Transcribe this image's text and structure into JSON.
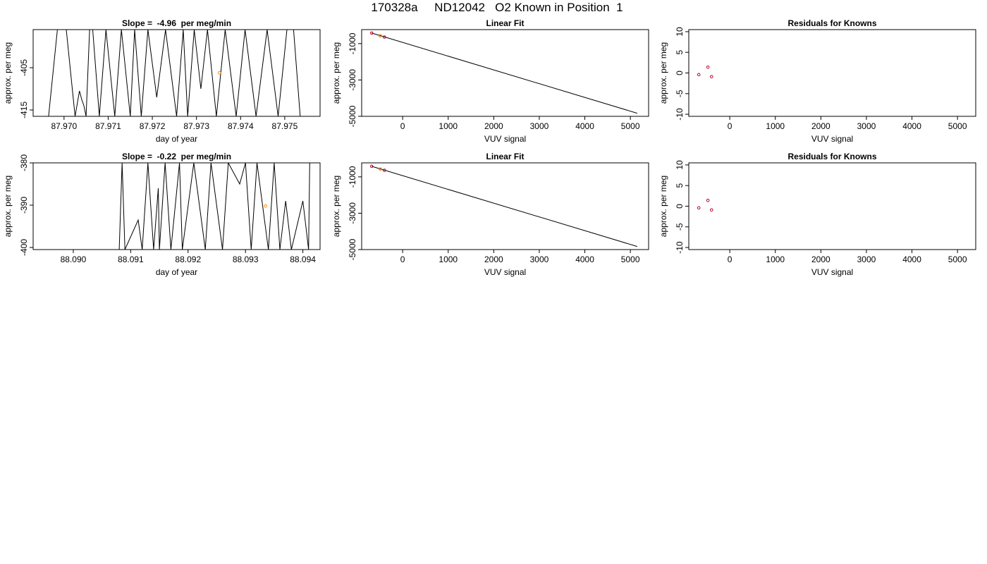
{
  "figure_title": "170328a     ND12042   O2 Known in Position  1",
  "colors": {
    "trace": "#000000",
    "known_marker": "#ff8c00",
    "residual_marker": "#c0002a",
    "fit_line": "#000000"
  },
  "chart_data": [
    {
      "id": "p1",
      "type": "line",
      "title": "Slope =  -4.96  per meg/min",
      "xlabel": "day of year",
      "ylabel": "approx. per meg",
      "xlim": [
        87.9693,
        87.9758
      ],
      "ylim": [
        -416.5,
        -396
      ],
      "xticks": [
        87.97,
        87.971,
        87.972,
        87.973,
        87.974,
        87.975
      ],
      "xtick_labels": [
        "87.970",
        "87.971",
        "87.972",
        "87.973",
        "87.974",
        "87.975"
      ],
      "yticks": [
        -405,
        -415
      ],
      "ytick_labels": [
        "-405",
        "-415"
      ],
      "series": [
        {
          "style": "trace",
          "x": [
            87.96965,
            87.96985,
            87.97005,
            87.97025,
            87.97035,
            87.9704,
            87.97045,
            87.9705,
            87.97058,
            87.97065,
            87.9708,
            87.97095,
            87.97115,
            87.9713,
            87.9715,
            87.9716,
            87.97175,
            87.9719,
            87.9721,
            87.9723,
            87.97255,
            87.9727,
            87.9728,
            87.97295,
            87.9731,
            87.97325,
            87.97345,
            87.97365,
            87.9739,
            87.9741,
            87.97435,
            87.9746,
            87.97485,
            87.97505,
            87.9752,
            87.97535
          ],
          "y": [
            -416.5,
            -396,
            -396,
            -416.5,
            -410.5,
            -412.5,
            -414,
            -416.5,
            -396,
            -396,
            -416.5,
            -396,
            -416.5,
            -396,
            -416.5,
            -396,
            -416.5,
            -396,
            -412,
            -396,
            -416.5,
            -396,
            -416.5,
            -396,
            -410,
            -396,
            -416.5,
            -396,
            -416.5,
            -396,
            -416.5,
            -396,
            -416.5,
            -396,
            -396,
            -416.5
          ]
        },
        {
          "style": "known_marker",
          "x": [
            87.97352
          ],
          "y": [
            -406.2
          ]
        }
      ]
    },
    {
      "id": "p2",
      "type": "scatter",
      "title": "Linear Fit",
      "xlabel": "VUV signal",
      "ylabel": "approx. per meg",
      "xlim": [
        -900,
        5400
      ],
      "ylim": [
        -5000,
        -230
      ],
      "xticks": [
        0,
        1000,
        2000,
        3000,
        4000,
        5000
      ],
      "xtick_labels": [
        "0",
        "1000",
        "2000",
        "3000",
        "4000",
        "5000"
      ],
      "yticks": [
        -1000,
        -3000,
        -5000
      ],
      "ytick_labels": [
        "-1000",
        "-3000",
        "-5000"
      ],
      "series": [
        {
          "style": "fit_line",
          "x": [
            -680,
            5150
          ],
          "y": [
            -420,
            -4830
          ]
        },
        {
          "style": "residual_marker",
          "x": [
            -680,
            -490,
            -400
          ],
          "y": [
            -420,
            -570,
            -640
          ]
        },
        {
          "style": "known_marker",
          "x": [
            -490
          ],
          "y": [
            -570
          ]
        }
      ]
    },
    {
      "id": "p3",
      "type": "scatter",
      "title": "Residuals for Knowns",
      "xlabel": "VUV signal",
      "ylabel": "approx. per meg",
      "xlim": [
        -900,
        5400
      ],
      "ylim": [
        -10.5,
        10.5
      ],
      "xticks": [
        0,
        1000,
        2000,
        3000,
        4000,
        5000
      ],
      "xtick_labels": [
        "0",
        "1000",
        "2000",
        "3000",
        "4000",
        "5000"
      ],
      "yticks": [
        -10,
        -5,
        0,
        5,
        10
      ],
      "ytick_labels": [
        "-10",
        "-5",
        "0",
        "5",
        "10"
      ],
      "series": [
        {
          "style": "residual_marker",
          "x": [
            -680,
            -480,
            -400
          ],
          "y": [
            -0.4,
            1.4,
            -0.9
          ]
        }
      ]
    },
    {
      "id": "p4",
      "type": "line",
      "title": "Slope =  -0.22  per meg/min",
      "xlabel": "day of year",
      "ylabel": "approx. per meg",
      "xlim": [
        88.0893,
        88.0943
      ],
      "ylim": [
        -400.5,
        -380
      ],
      "xticks": [
        88.09,
        88.091,
        88.092,
        88.093,
        88.094
      ],
      "xtick_labels": [
        "88.090",
        "88.091",
        "88.092",
        "88.093",
        "88.094"
      ],
      "yticks": [
        -380,
        -390,
        -400
      ],
      "ytick_labels": [
        "-380",
        "-390",
        "-400"
      ],
      "series": [
        {
          "style": "trace",
          "x": [
            88.0893,
            88.0908,
            88.09085,
            88.0909,
            88.09113,
            88.0912,
            88.0913,
            88.0914,
            88.09148,
            88.0915,
            88.0916,
            88.0917,
            88.09185,
            88.0919,
            88.0921,
            88.0923,
            88.0924,
            88.0926,
            88.0927,
            88.0929,
            88.093,
            88.0931,
            88.0932,
            88.0934,
            88.0935,
            88.0936,
            88.0937,
            88.0938,
            88.094,
            88.0941,
            88.09412
          ],
          "y": [
            -400.5,
            -400.5,
            -380,
            -400.5,
            -393.5,
            -400.5,
            -380,
            -400.5,
            -386,
            -400.5,
            -380,
            -400.5,
            -380,
            -400.5,
            -380,
            -400.5,
            -380,
            -400.5,
            -380,
            -385,
            -380,
            -400.5,
            -380,
            -400.5,
            -380,
            -400.5,
            -389,
            -400.5,
            -389,
            -400.5,
            -380
          ]
        },
        {
          "style": "known_marker",
          "x": [
            88.09335
          ],
          "y": [
            -390.2
          ]
        }
      ]
    },
    {
      "id": "p5",
      "type": "scatter",
      "title": "Linear Fit",
      "xlabel": "VUV signal",
      "ylabel": "approx. per meg",
      "xlim": [
        -900,
        5400
      ],
      "ylim": [
        -5000,
        -230
      ],
      "xticks": [
        0,
        1000,
        2000,
        3000,
        4000,
        5000
      ],
      "xtick_labels": [
        "0",
        "1000",
        "2000",
        "3000",
        "4000",
        "5000"
      ],
      "yticks": [
        -1000,
        -3000,
        -5000
      ],
      "ytick_labels": [
        "-1000",
        "-3000",
        "-5000"
      ],
      "series": [
        {
          "style": "fit_line",
          "x": [
            -680,
            5150
          ],
          "y": [
            -420,
            -4830
          ]
        },
        {
          "style": "residual_marker",
          "x": [
            -680,
            -490,
            -400
          ],
          "y": [
            -420,
            -570,
            -640
          ]
        },
        {
          "style": "known_marker",
          "x": [
            -490
          ],
          "y": [
            -570
          ]
        }
      ]
    },
    {
      "id": "p6",
      "type": "scatter",
      "title": "Residuals for Knowns",
      "xlabel": "VUV signal",
      "ylabel": "approx. per meg",
      "xlim": [
        -900,
        5400
      ],
      "ylim": [
        -10.5,
        10.5
      ],
      "xticks": [
        0,
        1000,
        2000,
        3000,
        4000,
        5000
      ],
      "xtick_labels": [
        "0",
        "1000",
        "2000",
        "3000",
        "4000",
        "5000"
      ],
      "yticks": [
        -10,
        -5,
        0,
        5,
        10
      ],
      "ytick_labels": [
        "-10",
        "-5",
        "0",
        "5",
        "10"
      ],
      "series": [
        {
          "style": "residual_marker",
          "x": [
            -680,
            -480,
            -400
          ],
          "y": [
            -0.4,
            1.4,
            -0.9
          ]
        }
      ]
    }
  ]
}
